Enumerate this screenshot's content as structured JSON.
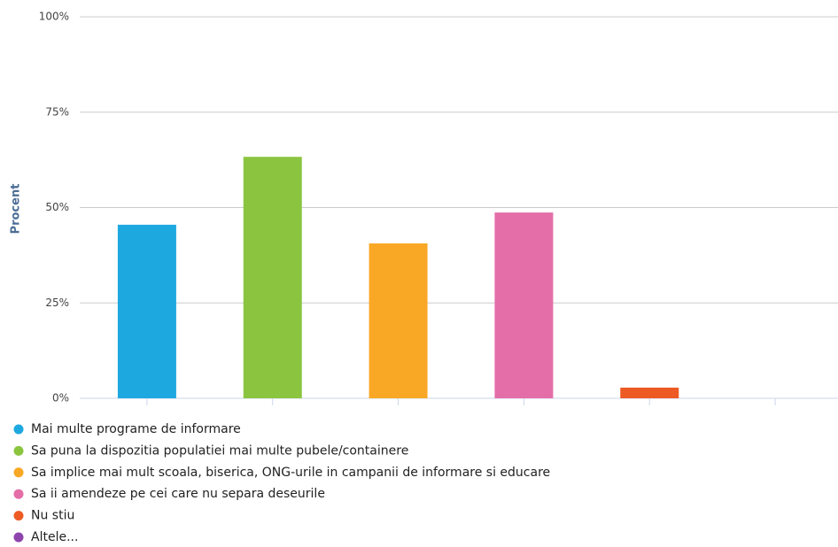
{
  "chart_data": {
    "type": "bar",
    "y_label": "Procent",
    "categories": [
      "Mai multe programe de informare",
      "Sa puna la dispozitia populatiei mai multe pubele/containere",
      "Sa implice mai mult scoala, biserica, ONG-urile in campanii de informare si educare",
      "Sa ii amendeze pe cei care nu separa deseurile",
      "Nu stiu",
      "Altele..."
    ],
    "values": [
      45.5,
      63.3,
      40.6,
      48.7,
      2.8,
      0
    ],
    "colors": [
      "#1ea8e0",
      "#8bc540",
      "#f9a825",
      "#e46ea8",
      "#ee5a24",
      "#8e44ad"
    ],
    "ylim": [
      0,
      100
    ],
    "yticks": [
      {
        "value": 0,
        "label": "0%"
      },
      {
        "value": 25,
        "label": "25%"
      },
      {
        "value": 50,
        "label": "50%"
      },
      {
        "value": 75,
        "label": "75%"
      },
      {
        "value": 100,
        "label": "100%"
      }
    ],
    "grid": true,
    "legend": "bottom"
  }
}
